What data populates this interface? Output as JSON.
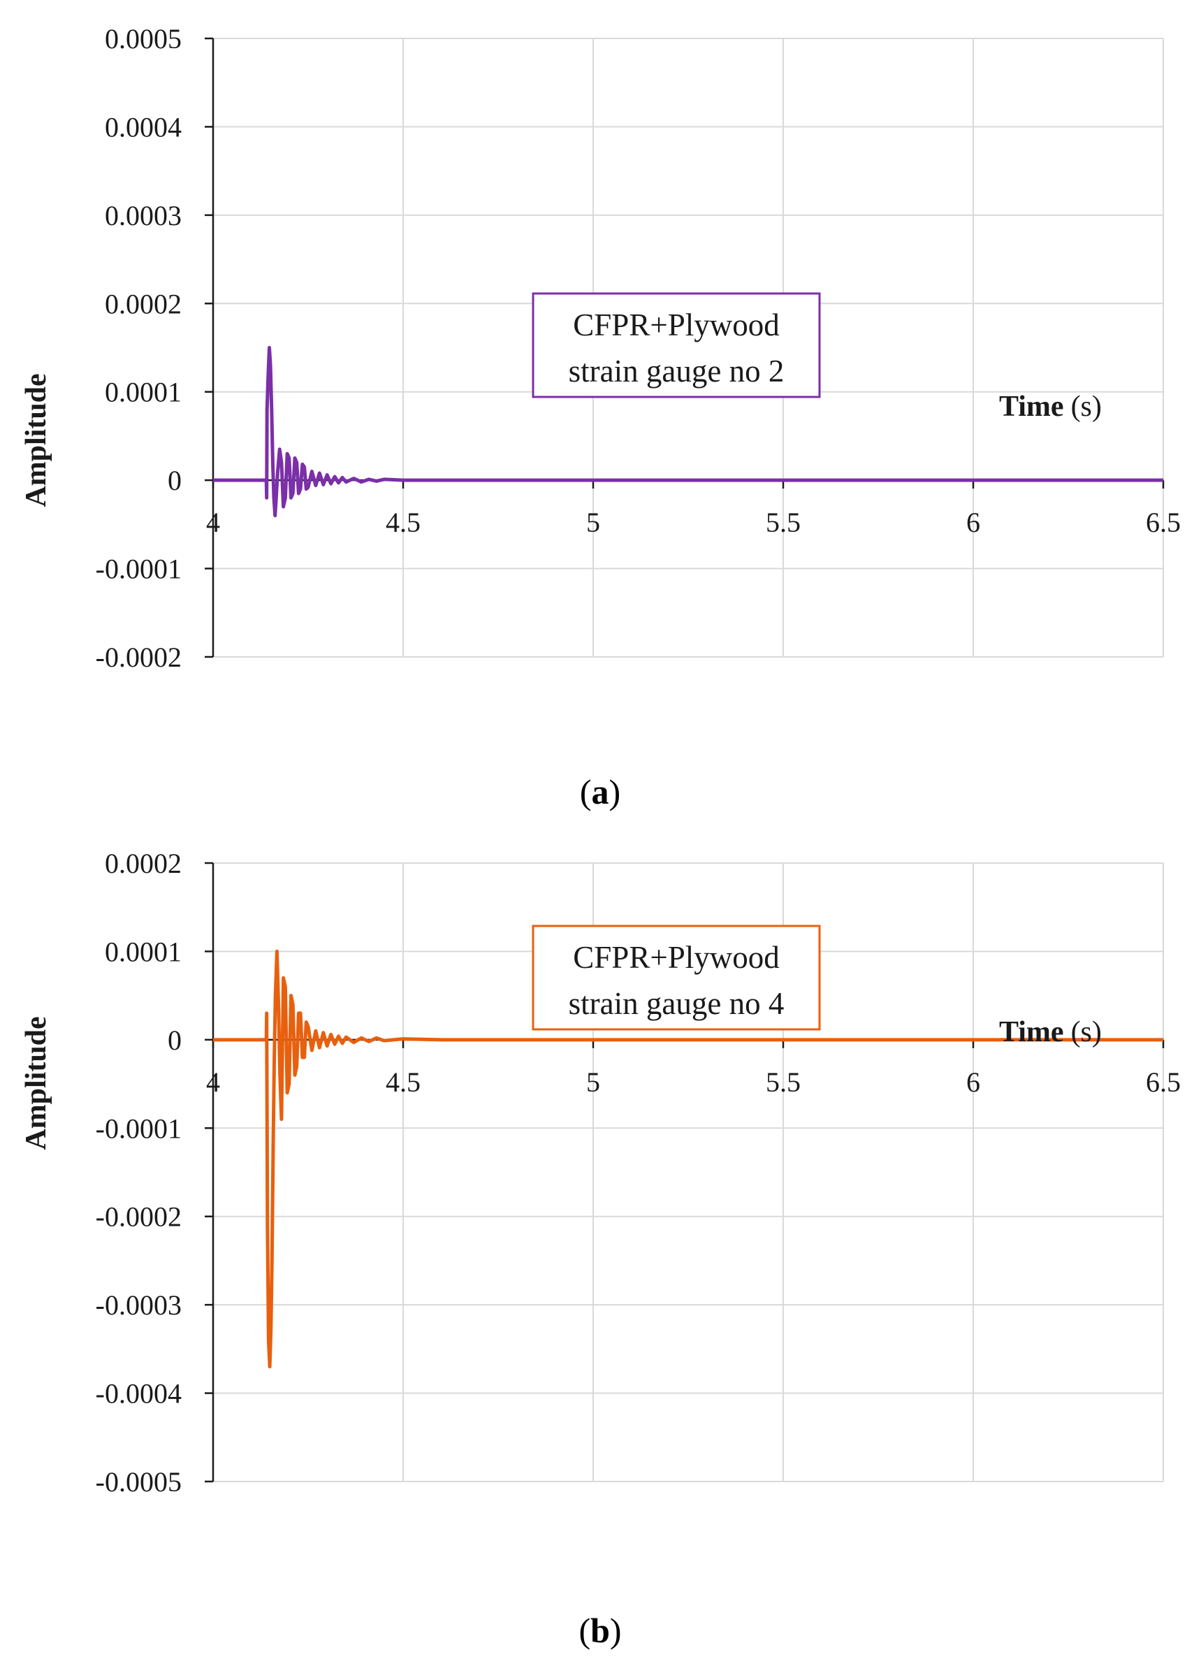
{
  "chart_data": [
    {
      "type": "line",
      "panel_label": "a",
      "annotation": [
        "CFPR+Plywood",
        "strain gauge no 2"
      ],
      "xlabel_main": "Time",
      "xlabel_unit": "(s)",
      "ylabel": "Amplitude",
      "xlim": [
        4,
        6.5
      ],
      "ylim": [
        -0.0002,
        0.0005
      ],
      "x_ticks": [
        "4",
        "4.5",
        "5",
        "5.5",
        "6",
        "6.5"
      ],
      "x_tick_values": [
        4,
        4.5,
        5,
        5.5,
        6,
        6.5
      ],
      "y_ticks": [
        "0.0005",
        "0.0004",
        "0.0003",
        "0.0002",
        "0.0001",
        "0",
        "-0.0001",
        "-0.0002"
      ],
      "y_tick_values": [
        0.0005,
        0.0004,
        0.0003,
        0.0002,
        0.0001,
        0,
        -0.0001,
        -0.0002
      ],
      "color": "#7b2fa8",
      "series": [
        {
          "name": "strain gauge no 2",
          "x": [
            4,
            4.14,
            4.141,
            4.142,
            4.145,
            4.148,
            4.151,
            4.154,
            4.157,
            4.16,
            4.163,
            4.166,
            4.17,
            4.175,
            4.18,
            4.185,
            4.19,
            4.195,
            4.2,
            4.205,
            4.21,
            4.215,
            4.22,
            4.225,
            4.23,
            4.235,
            4.24,
            4.245,
            4.25,
            4.26,
            4.27,
            4.28,
            4.29,
            4.3,
            4.31,
            4.32,
            4.33,
            4.34,
            4.35,
            4.37,
            4.39,
            4.41,
            4.43,
            4.45,
            4.5,
            6.5
          ],
          "y": [
            0,
            0,
            -2e-05,
            8e-05,
            0.00012,
            0.00015,
            0.00013,
            8e-05,
            2e-05,
            -2e-05,
            -4e-05,
            -2e-05,
            1e-05,
            3.5e-05,
            2e-05,
            -3e-05,
            -2e-05,
            3e-05,
            2.5e-05,
            -2e-05,
            -1.5e-05,
            2.5e-05,
            2e-05,
            -1.5e-05,
            -1e-05,
            1.8e-05,
            1.5e-05,
            -1e-05,
            -8e-06,
            1e-05,
            -6e-06,
            8e-06,
            -5e-06,
            6e-06,
            -4e-06,
            4e-06,
            -3e-06,
            3e-06,
            -2e-06,
            2e-06,
            -2e-06,
            1e-06,
            -1e-06,
            1e-06,
            0,
            0
          ]
        }
      ]
    },
    {
      "type": "line",
      "panel_label": "b",
      "annotation": [
        "CFPR+Plywood",
        "strain gauge no 4"
      ],
      "xlabel_main": "Time",
      "xlabel_unit": "(s)",
      "ylabel": "Amplitude",
      "xlim": [
        4,
        6.5
      ],
      "ylim": [
        -0.0005,
        0.0002
      ],
      "x_ticks": [
        "4",
        "4.5",
        "5",
        "5.5",
        "6",
        "6.5"
      ],
      "x_tick_values": [
        4,
        4.5,
        5,
        5.5,
        6,
        6.5
      ],
      "y_ticks": [
        "0.0002",
        "0.0001",
        "0",
        "-0.0001",
        "-0.0002",
        "-0.0003",
        "-0.0004",
        "-0.0005"
      ],
      "y_tick_values": [
        0.0002,
        0.0001,
        0,
        -0.0001,
        -0.0002,
        -0.0003,
        -0.0004,
        -0.0005
      ],
      "color": "#e8600e",
      "series": [
        {
          "name": "strain gauge no 4",
          "x": [
            4,
            4.14,
            4.141,
            4.143,
            4.146,
            4.149,
            4.152,
            4.155,
            4.158,
            4.161,
            4.164,
            4.168,
            4.172,
            4.176,
            4.18,
            4.185,
            4.19,
            4.195,
            4.2,
            4.205,
            4.21,
            4.215,
            4.22,
            4.225,
            4.23,
            4.235,
            4.24,
            4.245,
            4.25,
            4.26,
            4.27,
            4.28,
            4.29,
            4.3,
            4.31,
            4.32,
            4.33,
            4.34,
            4.35,
            4.37,
            4.39,
            4.41,
            4.43,
            4.45,
            4.5,
            4.6,
            6.5
          ],
          "y": [
            0,
            0,
            3e-05,
            -0.00021,
            -0.00034,
            -0.00037,
            -0.00033,
            -0.00025,
            -0.00012,
            -2e-05,
            5e-05,
            0.0001,
            4e-05,
            -4e-05,
            -9e-05,
            7e-05,
            6e-05,
            -6e-05,
            -5e-05,
            5e-05,
            4e-05,
            -4e-05,
            -3e-05,
            3e-05,
            3e-05,
            -2e-05,
            -2e-05,
            2e-05,
            1.5e-05,
            -1.2e-05,
            1e-05,
            -9e-06,
            8e-06,
            -7e-06,
            6e-06,
            -5e-06,
            4e-06,
            -4e-06,
            3e-06,
            -3e-06,
            2e-06,
            -2e-06,
            2e-06,
            -1e-06,
            1e-06,
            0,
            0
          ]
        }
      ]
    }
  ]
}
